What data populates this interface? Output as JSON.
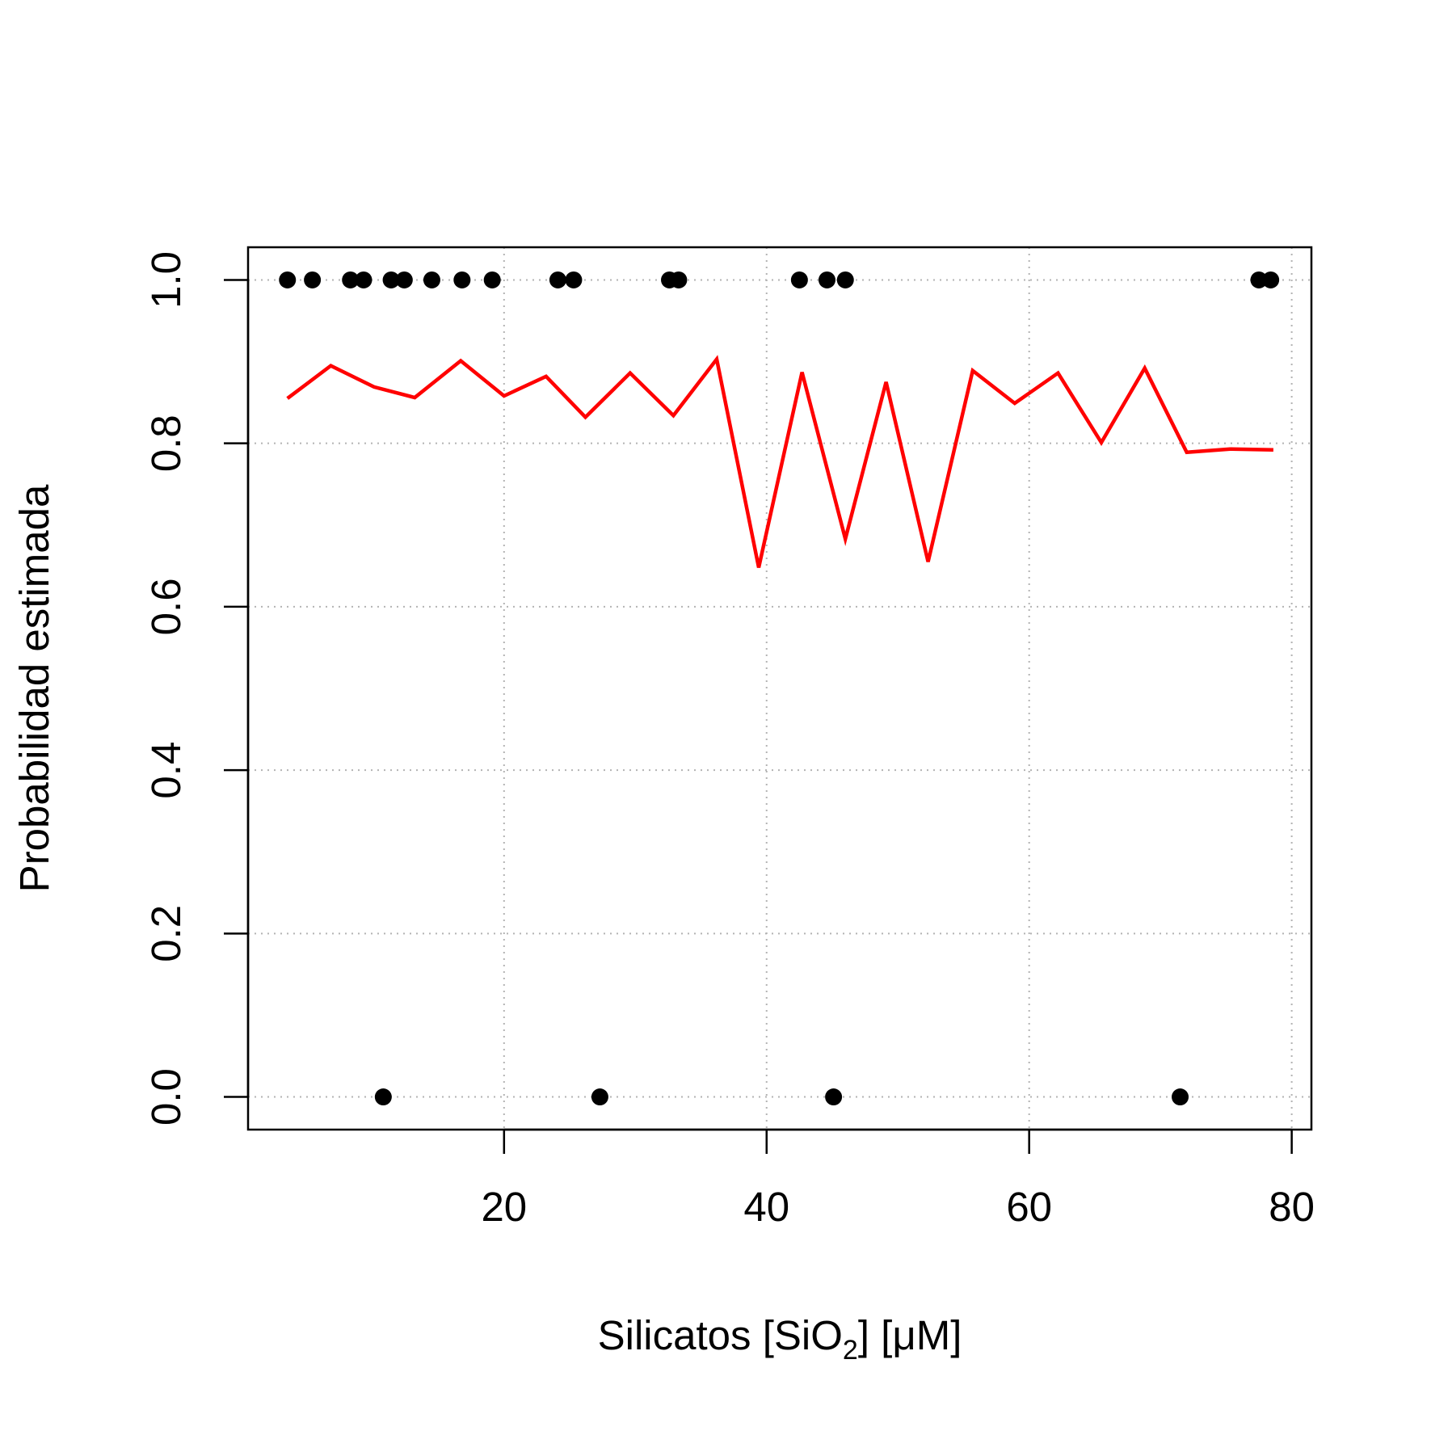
{
  "chart_data": {
    "type": "scatter",
    "title": "",
    "xlabel": {
      "prefix": "Silicatos [SiO",
      "subscript": "2",
      "suffix": "] [μM]"
    },
    "ylabel": "Probabilidad estimada",
    "xlim": [
      0.5,
      81.5
    ],
    "ylim": [
      -0.04,
      1.04
    ],
    "x_ticks": [
      20,
      40,
      60,
      80
    ],
    "x_tick_labels": [
      "20",
      "40",
      "60",
      "80"
    ],
    "y_ticks": [
      0.0,
      0.2,
      0.4,
      0.6,
      0.8,
      1.0
    ],
    "y_tick_labels": [
      "0.0",
      "0.2",
      "0.4",
      "0.6",
      "0.8",
      "1.0"
    ],
    "grid": true,
    "series": [
      {
        "kind": "points",
        "color": "#000000",
        "points": [
          [
            3.5,
            1
          ],
          [
            5.4,
            1
          ],
          [
            8.3,
            1
          ],
          [
            9.3,
            1
          ],
          [
            11.4,
            1
          ],
          [
            12.4,
            1
          ],
          [
            14.5,
            1
          ],
          [
            16.8,
            1
          ],
          [
            19.1,
            1
          ],
          [
            24.1,
            1
          ],
          [
            25.3,
            1
          ],
          [
            32.6,
            1
          ],
          [
            33.3,
            1
          ],
          [
            42.5,
            1
          ],
          [
            44.6,
            1
          ],
          [
            46.0,
            1
          ],
          [
            77.5,
            1
          ],
          [
            78.4,
            1
          ],
          [
            10.8,
            0
          ],
          [
            27.3,
            0
          ],
          [
            45.1,
            0
          ],
          [
            71.5,
            0
          ]
        ]
      },
      {
        "kind": "line",
        "color": "#ff0000",
        "points": [
          [
            3.5,
            0.855
          ],
          [
            6.8,
            0.895
          ],
          [
            10.1,
            0.869
          ],
          [
            13.2,
            0.856
          ],
          [
            16.7,
            0.901
          ],
          [
            20.0,
            0.858
          ],
          [
            23.2,
            0.882
          ],
          [
            26.2,
            0.832
          ],
          [
            29.6,
            0.886
          ],
          [
            32.9,
            0.834
          ],
          [
            36.2,
            0.903
          ],
          [
            39.4,
            0.648
          ],
          [
            42.7,
            0.887
          ],
          [
            46.0,
            0.683
          ],
          [
            49.1,
            0.875
          ],
          [
            52.3,
            0.655
          ],
          [
            55.7,
            0.889
          ],
          [
            58.9,
            0.849
          ],
          [
            62.2,
            0.886
          ],
          [
            65.5,
            0.801
          ],
          [
            68.8,
            0.892
          ],
          [
            72.0,
            0.789
          ],
          [
            75.3,
            0.793
          ],
          [
            78.6,
            0.792
          ]
        ]
      }
    ]
  }
}
